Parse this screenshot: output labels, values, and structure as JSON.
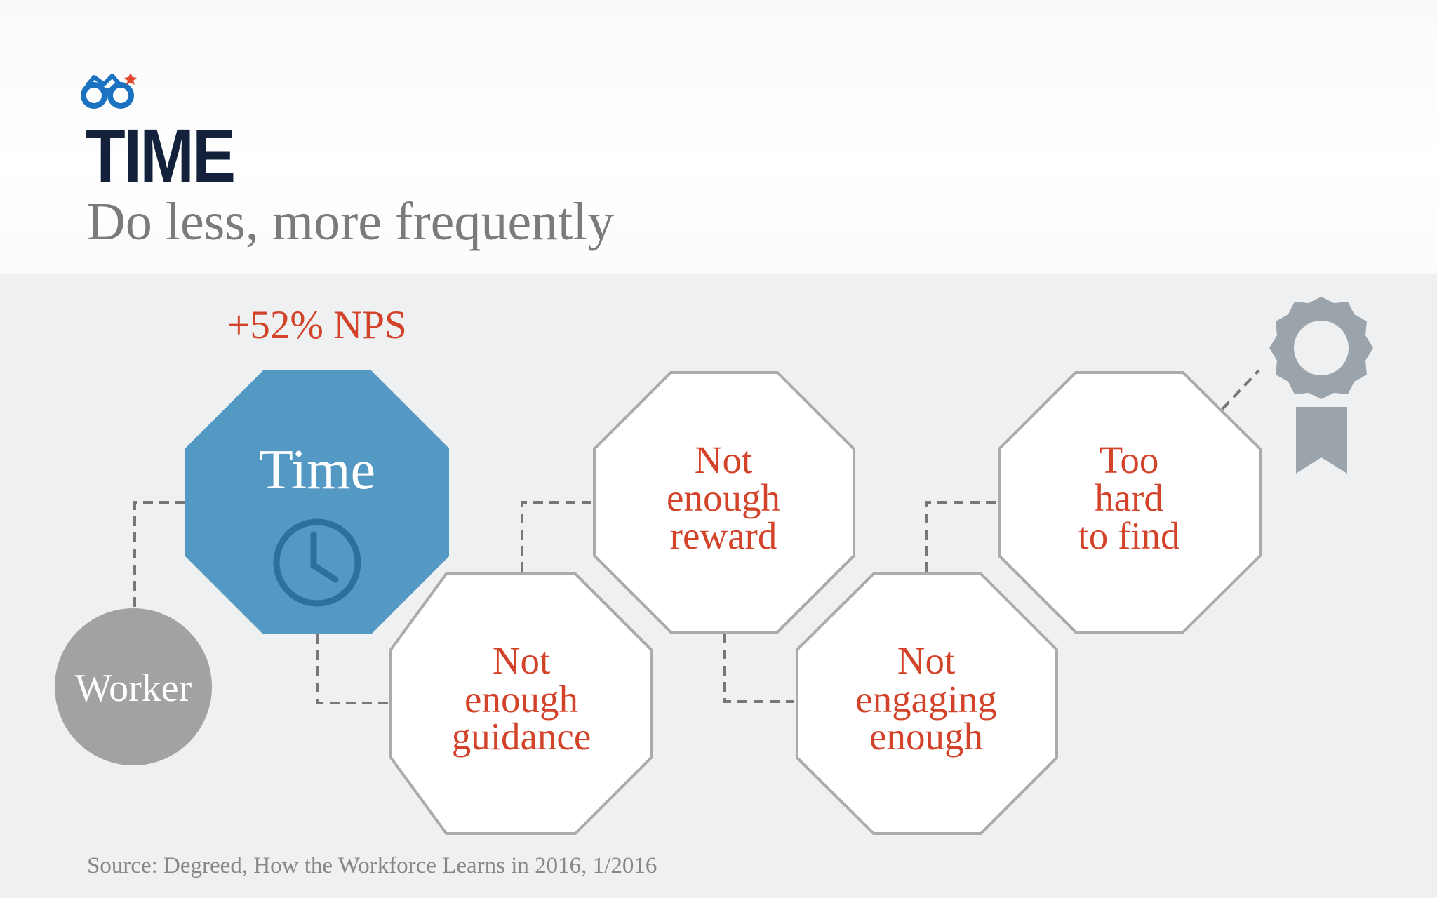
{
  "header": {
    "logo_icon": "glasses-logo-icon",
    "title": "TIME",
    "subtitle": "Do less, more frequently"
  },
  "diagram": {
    "stat_label": "+52% NPS",
    "start_node": "Worker",
    "highlight_node": {
      "label": "Time",
      "icon": "clock-icon"
    },
    "barrier_nodes": [
      {
        "id": "guidance",
        "lines": [
          "Not",
          "enough",
          "guidance"
        ]
      },
      {
        "id": "reward",
        "lines": [
          "Not",
          "enough",
          "reward"
        ]
      },
      {
        "id": "engaging",
        "lines": [
          "Not",
          "engaging",
          "enough"
        ]
      },
      {
        "id": "find",
        "lines": [
          "Too",
          "hard",
          "to find"
        ]
      }
    ],
    "goal_icon": "award-ribbon-icon"
  },
  "footer": {
    "source": "Source: Degreed, How the Workforce Learns in 2016, 1/2016"
  },
  "colors": {
    "title": "#13213a",
    "subtitle": "#7b7b7b",
    "accent_red": "#d2432a",
    "highlight_blue": "#5499c4",
    "clock_blue": "#2d6f9e",
    "node_border": "#a9abad",
    "worker_gray": "#a2a2a2",
    "badge_gray": "#9ba3ab",
    "connector": "#777777",
    "background": "#eef0f2"
  }
}
